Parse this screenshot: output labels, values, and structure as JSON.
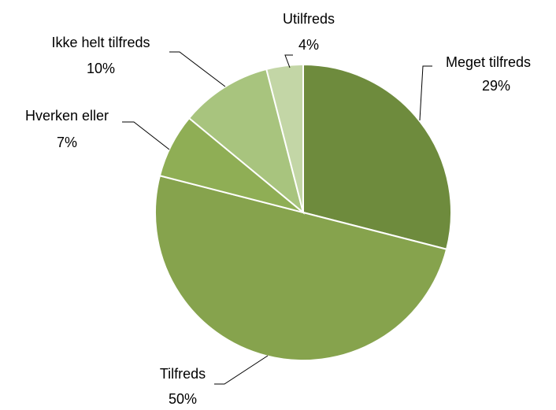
{
  "chart_data": {
    "type": "pie",
    "categories": [
      "Meget tilfreds",
      "Tilfreds",
      "Hverken eller",
      "Ikke helt tilfreds",
      "Utilfreds"
    ],
    "values": [
      29,
      50,
      7,
      10,
      4
    ],
    "value_labels": [
      "29%",
      "50%",
      "7%",
      "10%",
      "4%"
    ],
    "colors": [
      "#6e8b3d",
      "#86a34d",
      "#8fae55",
      "#a8c47e",
      "#c3d6a6"
    ]
  }
}
